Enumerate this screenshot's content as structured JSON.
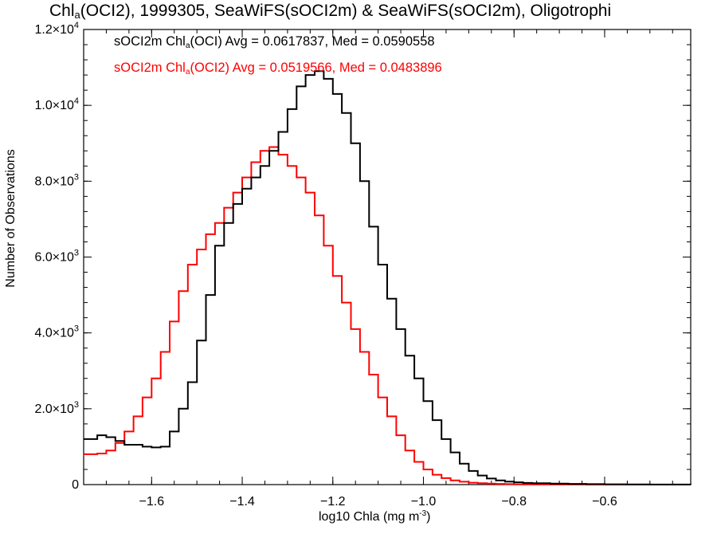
{
  "chart_data": {
    "type": "line",
    "step": true,
    "title": {
      "prefix": "Chl",
      "sub": "a",
      "rest": "(OCI2), 1999305, SeaWiFS(sOCI2m) & SeaWiFS(sOCI2m), Oligotrophi"
    },
    "xlabel": {
      "text": "log10 Chla (mg m",
      "sup": "-3",
      "end": ")"
    },
    "ylabel": "Number of Observations",
    "xlim": [
      -1.75,
      -0.41
    ],
    "ylim": [
      0,
      12000
    ],
    "xticks": [
      {
        "value": -1.6,
        "label": "−1.6"
      },
      {
        "value": -1.4,
        "label": "−1.4"
      },
      {
        "value": -1.2,
        "label": "−1.2"
      },
      {
        "value": -1.0,
        "label": "−1.0"
      },
      {
        "value": -0.8,
        "label": "−0.8"
      },
      {
        "value": -0.6,
        "label": "−0.6"
      }
    ],
    "yticks": [
      {
        "value": 0,
        "mant": "0",
        "exp": ""
      },
      {
        "value": 2000,
        "mant": "2.0×10",
        "exp": "3"
      },
      {
        "value": 4000,
        "mant": "4.0×10",
        "exp": "3"
      },
      {
        "value": 6000,
        "mant": "6.0×10",
        "exp": "3"
      },
      {
        "value": 8000,
        "mant": "8.0×10",
        "exp": "3"
      },
      {
        "value": 10000,
        "mant": "1.0×10",
        "exp": "4"
      },
      {
        "value": 12000,
        "mant": "1.2×10",
        "exp": "4"
      }
    ],
    "grid": false,
    "legend": [
      {
        "name": "sOCI2m Chl",
        "sub": "a",
        "rest": "(OCI) Avg = 0.0617837, Med = 0.0590558",
        "color": "#000000"
      },
      {
        "name": "sOCI2m Chl",
        "sub": "a",
        "rest": "(OCI2) Avg = 0.0519566, Med = 0.0483896",
        "color": "#ff0000"
      }
    ],
    "series": [
      {
        "color": "#000000",
        "x": [
          -1.75,
          -1.72,
          -1.7,
          -1.68,
          -1.66,
          -1.64,
          -1.62,
          -1.6,
          -1.58,
          -1.56,
          -1.54,
          -1.52,
          -1.5,
          -1.48,
          -1.46,
          -1.44,
          -1.42,
          -1.4,
          -1.38,
          -1.36,
          -1.34,
          -1.32,
          -1.3,
          -1.28,
          -1.26,
          -1.24,
          -1.22,
          -1.2,
          -1.18,
          -1.16,
          -1.14,
          -1.12,
          -1.1,
          -1.08,
          -1.06,
          -1.04,
          -1.02,
          -1.0,
          -0.98,
          -0.96,
          -0.94,
          -0.92,
          -0.9,
          -0.88,
          -0.86,
          -0.84,
          -0.82,
          -0.8,
          -0.78,
          -0.76,
          -0.72,
          -0.68,
          -0.64,
          -0.6,
          -0.55,
          -0.5,
          -0.45,
          -0.41
        ],
        "y": [
          1200,
          1300,
          1250,
          1150,
          1050,
          1050,
          1000,
          980,
          1000,
          1400,
          2000,
          2700,
          3800,
          5000,
          6300,
          6900,
          7400,
          7800,
          8100,
          8400,
          8800,
          9300,
          9900,
          10500,
          10800,
          10900,
          10700,
          10300,
          9800,
          9000,
          8000,
          6800,
          5800,
          4900,
          4100,
          3400,
          2800,
          2200,
          1700,
          1200,
          850,
          550,
          360,
          240,
          160,
          110,
          80,
          60,
          45,
          35,
          25,
          18,
          12,
          8,
          5,
          3,
          2,
          1
        ]
      },
      {
        "color": "#ff0000",
        "x": [
          -1.75,
          -1.72,
          -1.7,
          -1.68,
          -1.66,
          -1.64,
          -1.62,
          -1.6,
          -1.58,
          -1.56,
          -1.54,
          -1.52,
          -1.5,
          -1.48,
          -1.46,
          -1.44,
          -1.42,
          -1.4,
          -1.38,
          -1.36,
          -1.34,
          -1.32,
          -1.3,
          -1.28,
          -1.26,
          -1.24,
          -1.22,
          -1.2,
          -1.18,
          -1.16,
          -1.14,
          -1.12,
          -1.1,
          -1.08,
          -1.06,
          -1.04,
          -1.02,
          -1.0,
          -0.98,
          -0.96,
          -0.94,
          -0.92,
          -0.9,
          -0.88,
          -0.86,
          -0.84,
          -0.82,
          -0.8,
          -0.78,
          -0.76,
          -0.72,
          -0.68,
          -0.64,
          -0.6,
          -0.55,
          -0.5,
          -0.45,
          -0.41
        ],
        "y": [
          800,
          820,
          900,
          1100,
          1400,
          1800,
          2300,
          2800,
          3500,
          4300,
          5100,
          5800,
          6200,
          6600,
          6900,
          7300,
          7700,
          8100,
          8500,
          8800,
          8900,
          8700,
          8400,
          8100,
          7700,
          7100,
          6300,
          5500,
          4800,
          4100,
          3500,
          2900,
          2300,
          1800,
          1300,
          900,
          600,
          400,
          260,
          170,
          110,
          75,
          50,
          35,
          25,
          18,
          12,
          8,
          6,
          4,
          3,
          2,
          1,
          1,
          0,
          0,
          0,
          0
        ]
      }
    ]
  }
}
